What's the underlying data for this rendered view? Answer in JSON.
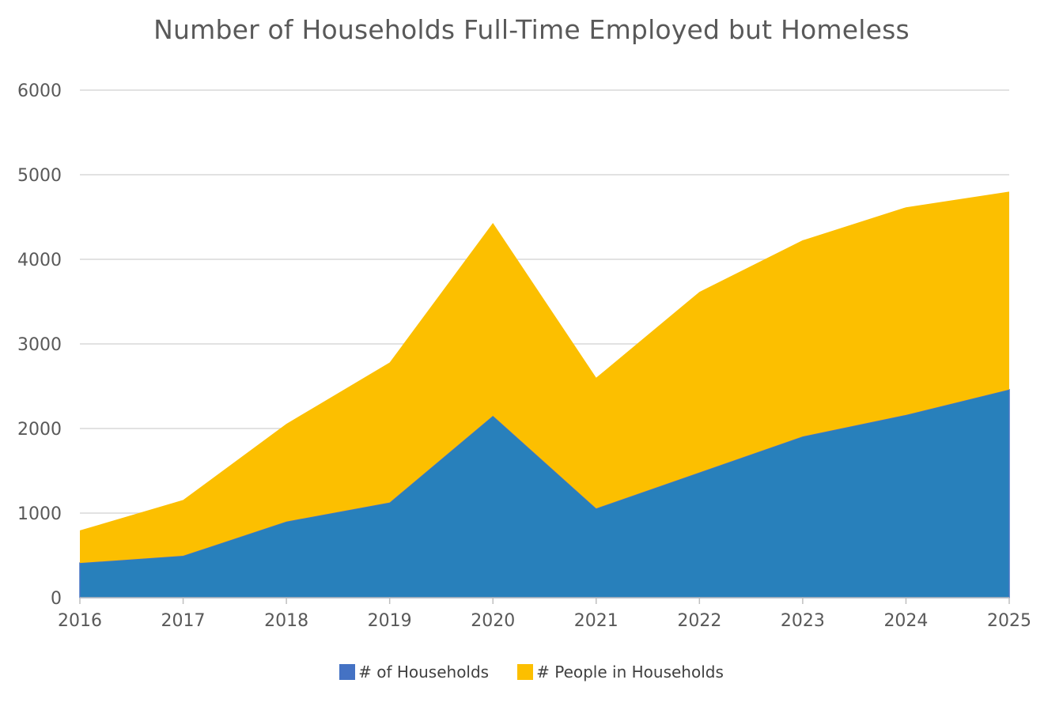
{
  "chart_data": {
    "type": "area",
    "stacked": true,
    "title": "Number of Households Full-Time Employed but Homeless",
    "xlabel": "",
    "ylabel": "",
    "x": [
      "2016",
      "2017",
      "2018",
      "2019",
      "2020",
      "2021",
      "2022",
      "2023",
      "2024",
      "2025"
    ],
    "ylim": [
      0,
      6000
    ],
    "yticks": [
      "0",
      "1000",
      "2000",
      "3000",
      "4000",
      "5000",
      "6000"
    ],
    "grid": true,
    "legend_position": "bottom",
    "series": [
      {
        "name": "# of Households",
        "values": [
          410,
          495,
          900,
          1125,
          2150,
          1055,
          1480,
          1905,
          2160,
          2460
        ],
        "fill_color": "#2880BB",
        "legend_color": "#4472C4"
      },
      {
        "name": "# People in Households",
        "values": [
          385,
          660,
          1155,
          1655,
          2280,
          1545,
          2135,
          2320,
          2455,
          2340
        ],
        "fill_color": "#FCBF00",
        "legend_color": "#FCBF00"
      }
    ]
  }
}
